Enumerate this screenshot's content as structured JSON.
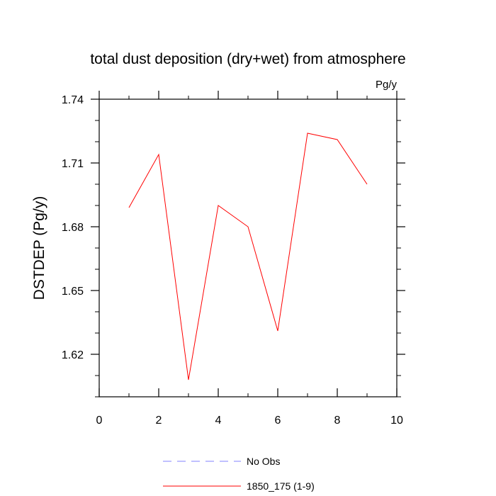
{
  "chart_data": {
    "type": "line",
    "title": "total dust deposition (dry+wet) from atmosphere",
    "units_label": "Pg/y",
    "ylabel": "DSTDEP  (Pg/y)",
    "xlabel": "",
    "xlim": [
      0,
      10
    ],
    "ylim": [
      1.6,
      1.74
    ],
    "xticks": [
      0,
      2,
      4,
      6,
      8,
      10
    ],
    "xtick_labels": [
      "0",
      "2",
      "4",
      "6",
      "8",
      "10"
    ],
    "yticks": [
      1.62,
      1.65,
      1.68,
      1.71,
      1.74
    ],
    "ytick_labels": [
      "1.62",
      "1.65",
      "1.68",
      "1.71",
      "1.74"
    ],
    "grid": false,
    "legend_position": "bottom",
    "series": [
      {
        "name": "1850_175 (1-9)",
        "color": "#ff0000",
        "style": "solid",
        "x": [
          1,
          2,
          3,
          4,
          5,
          6,
          7,
          8,
          9
        ],
        "y": [
          1.689,
          1.714,
          1.608,
          1.69,
          1.68,
          1.631,
          1.724,
          1.721,
          1.7
        ]
      }
    ],
    "legend": [
      {
        "label": "No Obs",
        "color": "#8080ff",
        "style": "dashed"
      },
      {
        "label": "1850_175 (1-9)",
        "color": "#ff0000",
        "style": "solid"
      }
    ]
  }
}
